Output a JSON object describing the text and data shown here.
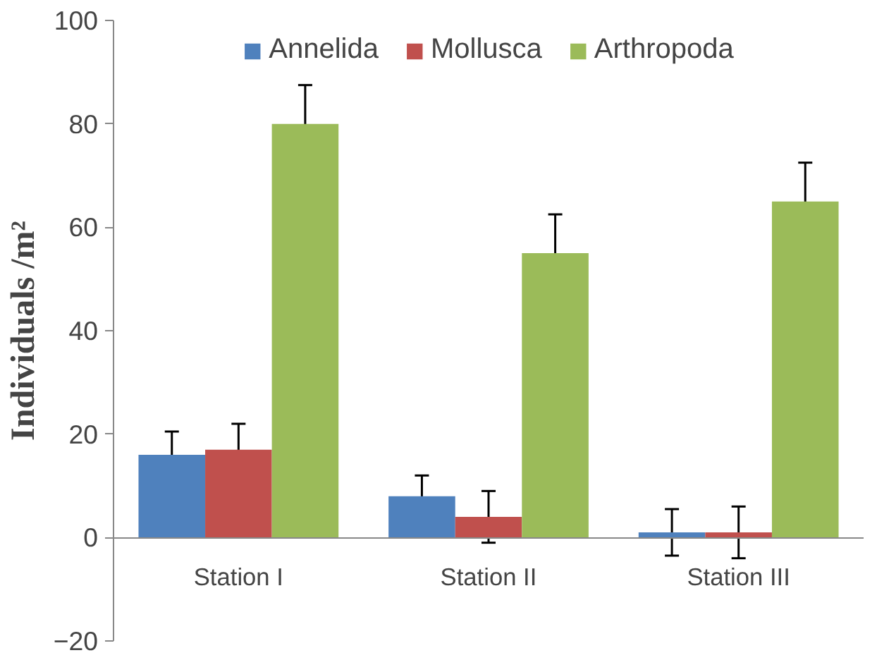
{
  "chart_data": {
    "type": "bar",
    "ylabel": "Individuals /m²",
    "categories": [
      "Station I",
      "Station II",
      "Station III"
    ],
    "series": [
      {
        "name": "Annelida",
        "color": "#4f81bd",
        "values": [
          16,
          8,
          1
        ],
        "errors": [
          4.5,
          4,
          4.5
        ]
      },
      {
        "name": "Mollusca",
        "color": "#c0504d",
        "values": [
          17,
          4,
          1
        ],
        "errors": [
          5,
          5,
          5
        ]
      },
      {
        "name": "Arthropoda",
        "color": "#9bbb59",
        "values": [
          80,
          55,
          65
        ],
        "errors": [
          7.5,
          7.5,
          7.5
        ]
      }
    ],
    "ylim": [
      -20,
      100
    ],
    "yticks": [
      -20,
      0,
      20,
      40,
      60,
      80,
      100
    ],
    "grid": false,
    "legend": "top"
  }
}
